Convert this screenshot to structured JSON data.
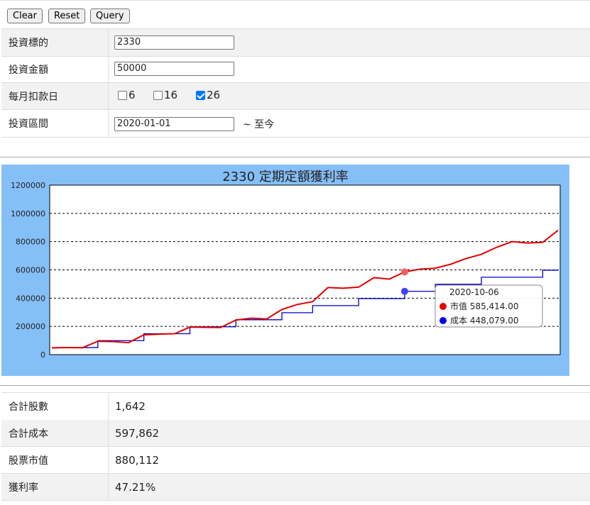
{
  "toolbar": {
    "clear": "Clear",
    "reset": "Reset",
    "query": "Query"
  },
  "form": {
    "target_label": "投資標的",
    "target_value": "2330",
    "amount_label": "投資金額",
    "amount_value": "50000",
    "day_label": "每月扣款日",
    "days": [
      {
        "label": "6",
        "checked": false
      },
      {
        "label": "16",
        "checked": false
      },
      {
        "label": "26",
        "checked": true
      }
    ],
    "period_label": "投資區間",
    "period_start": "2020-01-01",
    "period_suffix": "~ 至今"
  },
  "chart_data": {
    "type": "line",
    "title": "2330 定期定額獲利率",
    "ylim": [
      0,
      1200000
    ],
    "yticks": [
      "0",
      "200000",
      "400000",
      "600000",
      "800000",
      "1000000",
      "1200000"
    ],
    "grid": true,
    "series": [
      {
        "name": "市值",
        "color": "#e00000",
        "values": [
          48000,
          50000,
          49000,
          95000,
          92000,
          85000,
          140000,
          145000,
          148000,
          195000,
          193000,
          192000,
          245000,
          258000,
          252000,
          320000,
          355000,
          375000,
          475000,
          470000,
          478000,
          545000,
          535000,
          585414,
          605000,
          612000,
          640000,
          680000,
          710000,
          760000,
          800000,
          790000,
          795000,
          880112
        ]
      },
      {
        "name": "成本",
        "color": "#0000c0",
        "values": [
          50000,
          50000,
          50000,
          99000,
          99000,
          99000,
          148000,
          148000,
          148000,
          197000,
          197000,
          197000,
          247000,
          247000,
          247000,
          297000,
          297000,
          347000,
          347000,
          347000,
          397000,
          397000,
          397000,
          448079,
          448079,
          498000,
          498000,
          498000,
          548000,
          548000,
          548000,
          548000,
          597862,
          597862
        ]
      }
    ],
    "tooltip": {
      "date": "2020-10-06",
      "index": 23,
      "items": [
        {
          "label": "市值",
          "value": "585,414.00",
          "color": "#e00000"
        },
        {
          "label": "成本",
          "value": "448,079.00",
          "color": "#0000ee"
        }
      ]
    }
  },
  "results": [
    {
      "label": "合計股數",
      "value": "1,642"
    },
    {
      "label": "合計成本",
      "value": "597,862"
    },
    {
      "label": "股票市值",
      "value": "880,112"
    },
    {
      "label": "獲利率",
      "value": "47.21%"
    }
  ]
}
